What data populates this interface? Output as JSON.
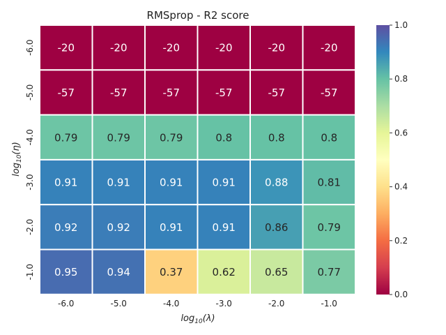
{
  "chart_data": {
    "type": "heatmap",
    "title": "RMSprop - R2 score",
    "xlabel": "log10(λ)",
    "ylabel": "log10(η)",
    "x_categories": [
      "-6.0",
      "-5.0",
      "-4.0",
      "-3.0",
      "-2.0",
      "-1.0"
    ],
    "y_categories": [
      "-6.0",
      "-5.0",
      "-4.0",
      "-3.0",
      "-2.0",
      "-1.0"
    ],
    "values": [
      [
        -20,
        -20,
        -20,
        -20,
        -20,
        -20
      ],
      [
        -57,
        -57,
        -57,
        -57,
        -57,
        -57
      ],
      [
        0.79,
        0.79,
        0.79,
        0.8,
        0.8,
        0.8
      ],
      [
        0.91,
        0.91,
        0.91,
        0.91,
        0.88,
        0.81
      ],
      [
        0.92,
        0.92,
        0.91,
        0.91,
        0.86,
        0.79
      ],
      [
        0.95,
        0.94,
        0.37,
        0.62,
        0.65,
        0.77
      ]
    ],
    "cell_labels": [
      [
        "-20",
        "-20",
        "-20",
        "-20",
        "-20",
        "-20"
      ],
      [
        "-57",
        "-57",
        "-57",
        "-57",
        "-57",
        "-57"
      ],
      [
        "0.79",
        "0.79",
        "0.79",
        "0.8",
        "0.8",
        "0.8"
      ],
      [
        "0.91",
        "0.91",
        "0.91",
        "0.91",
        "0.88",
        "0.81"
      ],
      [
        "0.92",
        "0.92",
        "0.91",
        "0.91",
        "0.86",
        "0.79"
      ],
      [
        "0.95",
        "0.94",
        "0.37",
        "0.62",
        "0.65",
        "0.77"
      ]
    ],
    "colormap": "Spectral",
    "vmin": 0.0,
    "vmax": 1.0,
    "colorbar_ticks": [
      "0.0",
      "0.2",
      "0.4",
      "0.6",
      "0.8",
      "1.0"
    ],
    "grid": false,
    "cell_border_color": "#ffffff"
  }
}
